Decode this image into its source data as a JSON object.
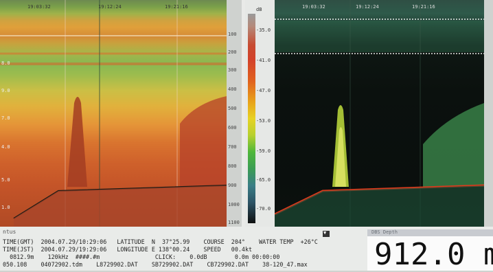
{
  "time_axis": {
    "left": [
      "19:03:32",
      "19:12:24",
      "19:21:16"
    ],
    "right": [
      "19:03:32",
      "19:12:24",
      "19:21:16"
    ]
  },
  "left_depth_ticks": [
    "8.0",
    "9.0",
    "7.0",
    "4.0",
    "5.0",
    "1.0",
    "3.0"
  ],
  "colorbar": {
    "unit": "dB",
    "labels": [
      "-35.0",
      "-41.0",
      "-47.0",
      "-53.0",
      "-59.0",
      "-65.0",
      "-70.0"
    ]
  },
  "depth_scale": [
    "100",
    "200",
    "300",
    "400",
    "500",
    "600",
    "700",
    "800",
    "900",
    "1000",
    "1100"
  ],
  "status": {
    "title": "ntus",
    "line1": "TIME(GMT)  2004.07.29/10:29:06   LATITUDE  N  37°25.99    COURSE  204°    WATER TEMP  +26°C",
    "line2": "TIME(JST)  2004.07.29/19:29:06   LONGITUDE E 138°00.24    SPEED   00.4kt",
    "line3": "  0812.9m    120kHz  ####.#m                CLICK:    0.0dB        0.0m 00:00:00",
    "line4": "050.108    04072902.tdm    L8729902.DAT    SB729902.DAT    CB729902.DAT    38-120_47.max"
  },
  "depth_panel": {
    "title": "DBS Depth",
    "value": "912.0 m"
  }
}
